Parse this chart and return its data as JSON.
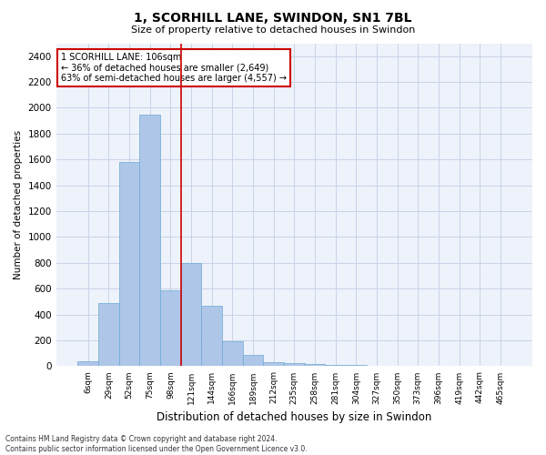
{
  "title": "1, SCORHILL LANE, SWINDON, SN1 7BL",
  "subtitle": "Size of property relative to detached houses in Swindon",
  "xlabel": "Distribution of detached houses by size in Swindon",
  "ylabel": "Number of detached properties",
  "footer_line1": "Contains HM Land Registry data © Crown copyright and database right 2024.",
  "footer_line2": "Contains public sector information licensed under the Open Government Licence v3.0.",
  "annotation_line1": "1 SCORHILL LANE: 106sqm",
  "annotation_line2": "← 36% of detached houses are smaller (2,649)",
  "annotation_line3": "63% of semi-detached houses are larger (4,557) →",
  "bar_labels": [
    "6sqm",
    "29sqm",
    "52sqm",
    "75sqm",
    "98sqm",
    "121sqm",
    "144sqm",
    "166sqm",
    "189sqm",
    "212sqm",
    "235sqm",
    "258sqm",
    "281sqm",
    "304sqm",
    "327sqm",
    "350sqm",
    "373sqm",
    "396sqm",
    "419sqm",
    "442sqm",
    "465sqm"
  ],
  "bar_heights": [
    40,
    490,
    1580,
    1950,
    590,
    800,
    470,
    195,
    85,
    30,
    25,
    20,
    10,
    10,
    0,
    0,
    0,
    0,
    0,
    0,
    0
  ],
  "bar_color": "#aec6e8",
  "bar_edge_color": "#6aaad4",
  "vline_color": "#cc0000",
  "annotation_box_edge_color": "#cc0000",
  "grid_color": "#c8d4e8",
  "background_color": "#eef2fa",
  "ylim": [
    0,
    2500
  ],
  "yticks": [
    0,
    200,
    400,
    600,
    800,
    1000,
    1200,
    1400,
    1600,
    1800,
    2000,
    2200,
    2400
  ],
  "fig_width": 6.0,
  "fig_height": 5.0,
  "dpi": 100
}
